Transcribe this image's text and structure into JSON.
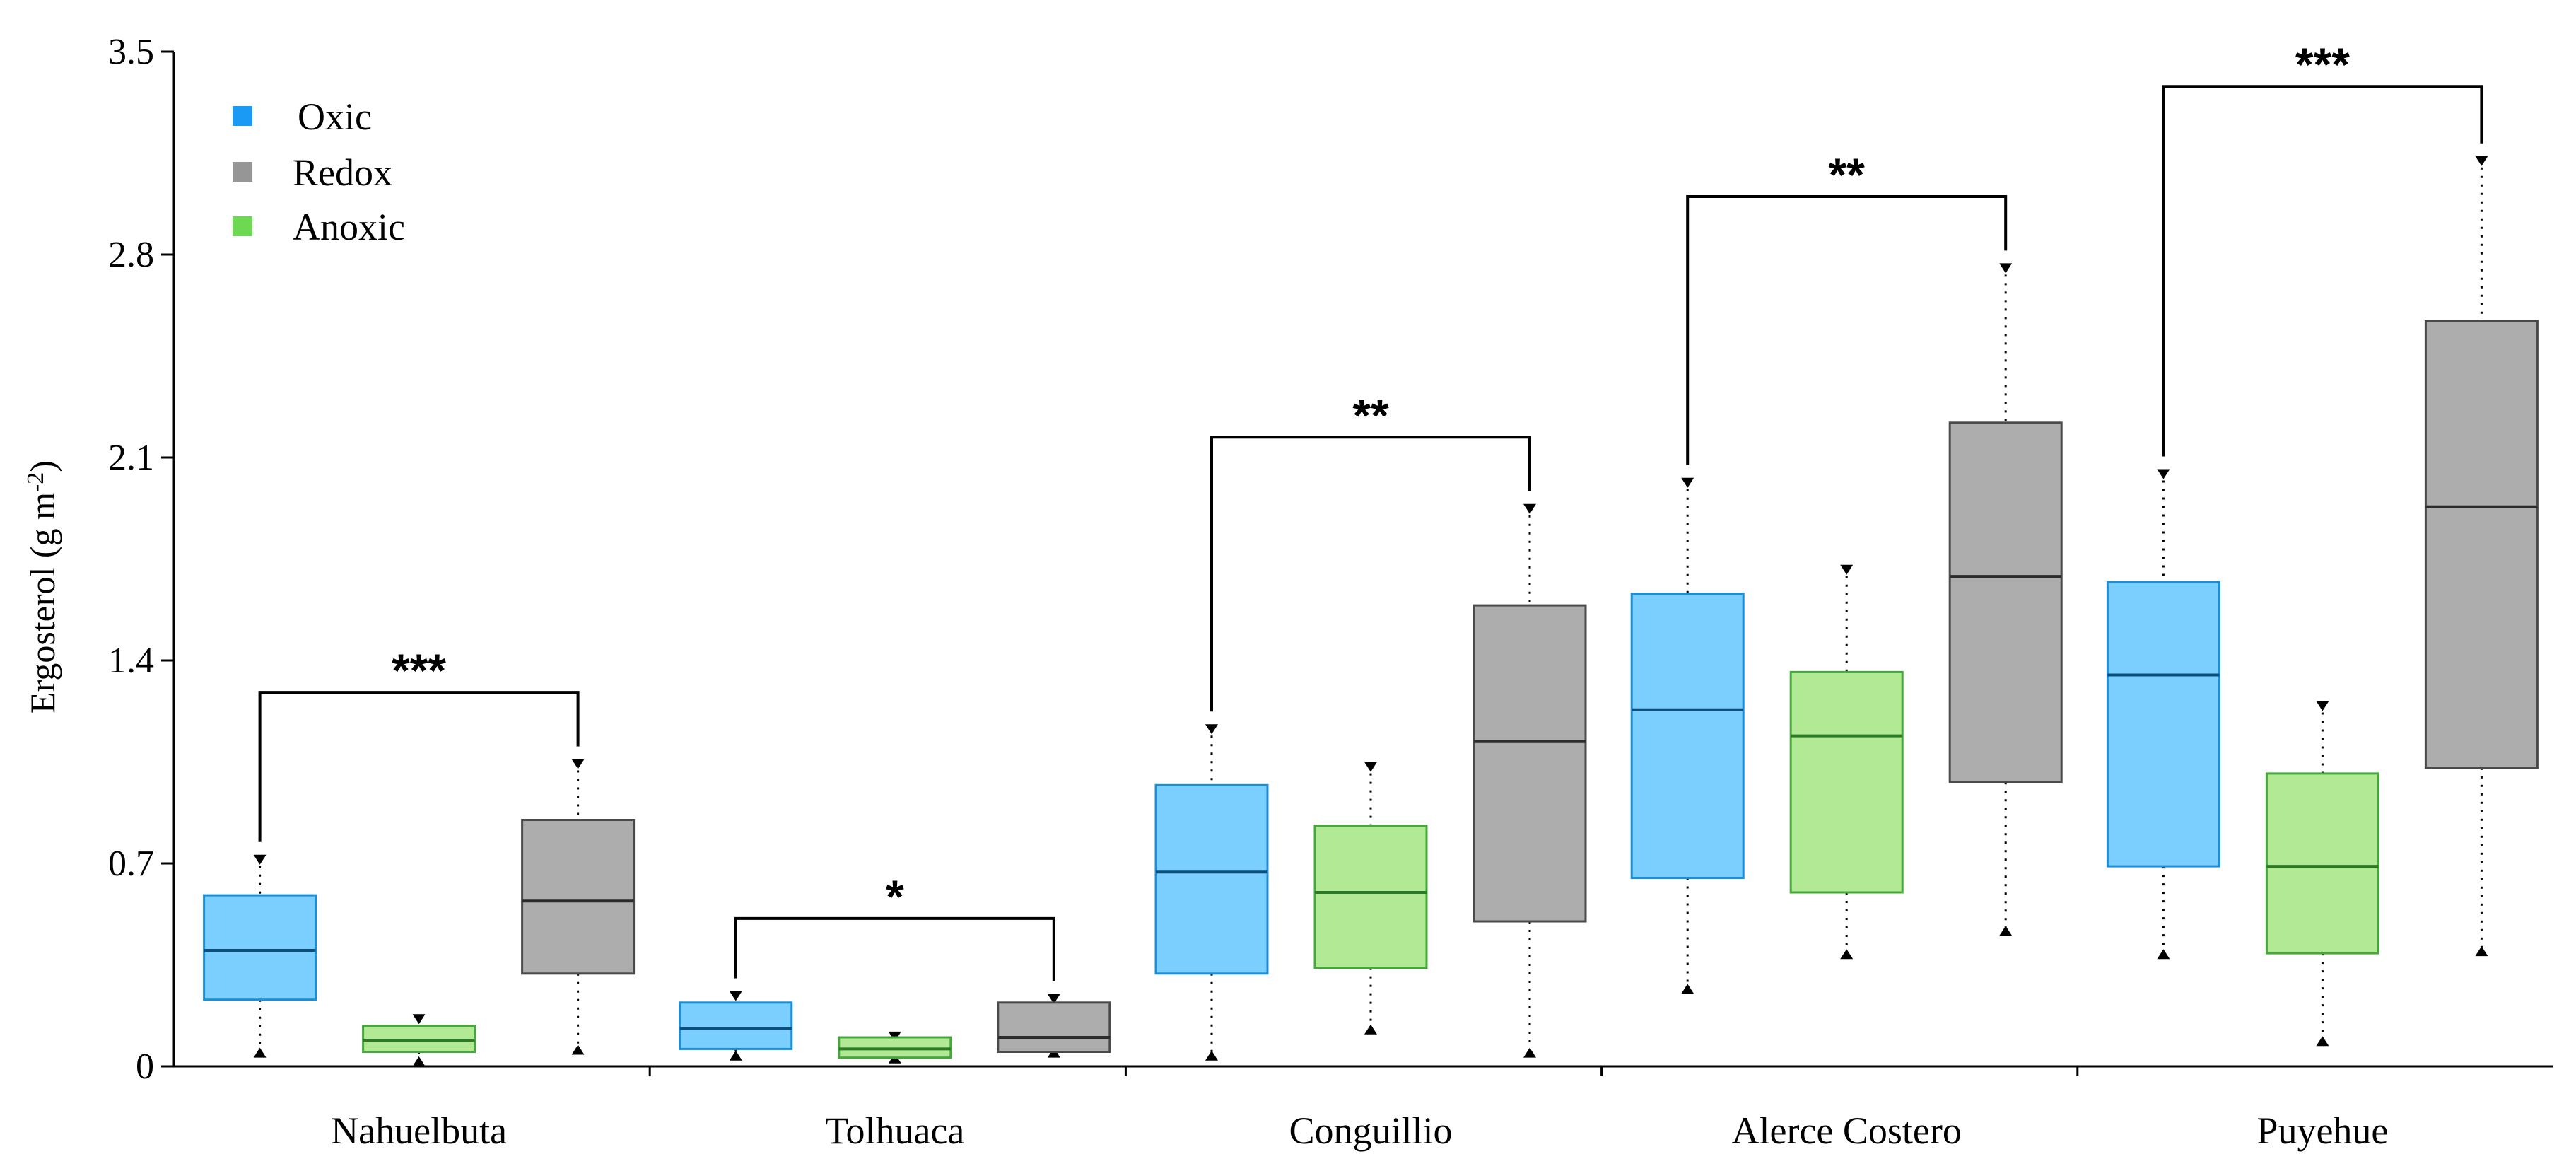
{
  "chart_data": {
    "type": "box",
    "ylabel": "Ergosterol (g m",
    "ylabel_sup": "-2",
    "ylabel_close": ")",
    "ylim": [
      0,
      3.5
    ],
    "yticks": [
      "0",
      "0.7",
      "1.4",
      "2.1",
      "2.8",
      "3.5"
    ],
    "grid": false,
    "legend_position": "top-left",
    "legend": [
      {
        "name": "Oxic",
        "color": "#1a9af4"
      },
      {
        "name": "Redox",
        "color": "#969696"
      },
      {
        "name": "Anoxic",
        "color": "#6dd852"
      }
    ],
    "colors": {
      "Oxic": {
        "fill": "#7acfff",
        "stroke": "#1a8fd8",
        "median": "#0b4f7a"
      },
      "Anoxic": {
        "fill": "#b2e995",
        "stroke": "#44a83a",
        "median": "#2a7a28"
      },
      "Redox": {
        "fill": "#adadad",
        "stroke": "#4a4a4a",
        "median": "#2b2b2b"
      }
    },
    "categories": [
      "Nahuelbuta",
      "Tolhuaca",
      "Conguillio",
      "Alerce Costero",
      "Puyehue"
    ],
    "groups": [
      {
        "category": "Nahuelbuta",
        "boxes": [
          {
            "series": "Oxic",
            "whisker_low": 0.04,
            "q1": 0.23,
            "median": 0.4,
            "q3": 0.59,
            "whisker_high": 0.72
          },
          {
            "series": "Anoxic",
            "whisker_low": 0.01,
            "q1": 0.05,
            "median": 0.09,
            "q3": 0.14,
            "whisker_high": 0.17
          },
          {
            "series": "Redox",
            "whisker_low": 0.05,
            "q1": 0.32,
            "median": 0.57,
            "q3": 0.85,
            "whisker_high": 1.05
          }
        ],
        "significance": {
          "label": "***",
          "from": "Oxic",
          "to": "Redox",
          "y": 1.29
        }
      },
      {
        "category": "Tolhuaca",
        "boxes": [
          {
            "series": "Oxic",
            "whisker_low": 0.03,
            "q1": 0.06,
            "median": 0.13,
            "q3": 0.22,
            "whisker_high": 0.25
          },
          {
            "series": "Anoxic",
            "whisker_low": 0.02,
            "q1": 0.03,
            "median": 0.06,
            "q3": 0.1,
            "whisker_high": 0.11
          },
          {
            "series": "Redox",
            "whisker_low": 0.04,
            "q1": 0.05,
            "median": 0.1,
            "q3": 0.22,
            "whisker_high": 0.24
          }
        ],
        "significance": {
          "label": "*",
          "from": "Oxic",
          "to": "Redox",
          "y": 0.51
        }
      },
      {
        "category": "Conguillio",
        "boxes": [
          {
            "series": "Oxic",
            "whisker_low": 0.03,
            "q1": 0.32,
            "median": 0.67,
            "q3": 0.97,
            "whisker_high": 1.17
          },
          {
            "series": "Anoxic",
            "whisker_low": 0.12,
            "q1": 0.34,
            "median": 0.6,
            "q3": 0.83,
            "whisker_high": 1.04
          },
          {
            "series": "Redox",
            "whisker_low": 0.04,
            "q1": 0.5,
            "median": 1.12,
            "q3": 1.59,
            "whisker_high": 1.93
          }
        ],
        "significance": {
          "label": "**",
          "from": "Oxic",
          "to": "Redox",
          "y": 2.17
        }
      },
      {
        "category": "Alerce Costero",
        "boxes": [
          {
            "series": "Oxic",
            "whisker_low": 0.26,
            "q1": 0.65,
            "median": 1.23,
            "q3": 1.63,
            "whisker_high": 2.02
          },
          {
            "series": "Anoxic",
            "whisker_low": 0.38,
            "q1": 0.6,
            "median": 1.14,
            "q3": 1.36,
            "whisker_high": 1.72
          },
          {
            "series": "Redox",
            "whisker_low": 0.46,
            "q1": 0.98,
            "median": 1.69,
            "q3": 2.22,
            "whisker_high": 2.76
          }
        ],
        "significance": {
          "label": "**",
          "from": "Oxic",
          "to": "Redox",
          "y": 3.0
        }
      },
      {
        "category": "Puyehue",
        "boxes": [
          {
            "series": "Oxic",
            "whisker_low": 0.38,
            "q1": 0.69,
            "median": 1.35,
            "q3": 1.67,
            "whisker_high": 2.05
          },
          {
            "series": "Anoxic",
            "whisker_low": 0.08,
            "q1": 0.39,
            "median": 0.69,
            "q3": 1.01,
            "whisker_high": 1.25
          },
          {
            "series": "Redox",
            "whisker_low": 0.39,
            "q1": 1.03,
            "median": 1.93,
            "q3": 2.57,
            "whisker_high": 3.13
          }
        ],
        "significance": {
          "label": "***",
          "from": "Oxic",
          "to": "Redox",
          "y": 3.38
        }
      }
    ]
  }
}
